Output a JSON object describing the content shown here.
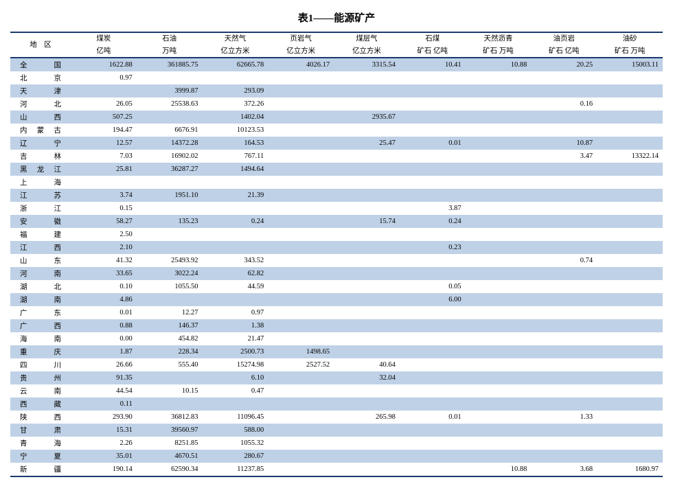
{
  "title": "表1——能源矿产",
  "columns": [
    {
      "l1": "地　区",
      "l2": ""
    },
    {
      "l1": "煤炭",
      "l2": "亿吨"
    },
    {
      "l1": "石油",
      "l2": "万吨"
    },
    {
      "l1": "天然气",
      "l2": "亿立方米"
    },
    {
      "l1": "页岩气",
      "l2": "亿立方米"
    },
    {
      "l1": "煤层气",
      "l2": "亿立方米"
    },
    {
      "l1": "石煤",
      "l2": "矿石 亿吨"
    },
    {
      "l1": "天然沥青",
      "l2": "矿石 万吨"
    },
    {
      "l1": "油页岩",
      "l2": "矿石 亿吨"
    },
    {
      "l1": "油砂",
      "l2": "矿石 万吨"
    }
  ],
  "rows": [
    {
      "r": "全国",
      "c": [
        "1622.88",
        "361885.75",
        "62665.78",
        "4026.17",
        "3315.54",
        "10.41",
        "10.88",
        "20.25",
        "15003.11"
      ]
    },
    {
      "r": "北京",
      "c": [
        "0.97",
        "",
        "",
        "",
        "",
        "",
        "",
        "",
        ""
      ]
    },
    {
      "r": "天津",
      "c": [
        "",
        "3999.87",
        "293.09",
        "",
        "",
        "",
        "",
        "",
        ""
      ]
    },
    {
      "r": "河北",
      "c": [
        "26.05",
        "25538.63",
        "372.26",
        "",
        "",
        "",
        "",
        "0.16",
        ""
      ]
    },
    {
      "r": "山西",
      "c": [
        "507.25",
        "",
        "1402.04",
        "",
        "2935.67",
        "",
        "",
        "",
        ""
      ]
    },
    {
      "r": "内蒙古",
      "c": [
        "194.47",
        "6676.91",
        "10123.53",
        "",
        "",
        "",
        "",
        "",
        ""
      ]
    },
    {
      "r": "辽宁",
      "c": [
        "12.57",
        "14372.28",
        "164.53",
        "",
        "25.47",
        "0.01",
        "",
        "10.87",
        ""
      ]
    },
    {
      "r": "吉林",
      "c": [
        "7.03",
        "16902.02",
        "767.11",
        "",
        "",
        "",
        "",
        "3.47",
        "13322.14"
      ]
    },
    {
      "r": "黑龙江",
      "c": [
        "25.81",
        "36287.27",
        "1494.64",
        "",
        "",
        "",
        "",
        "",
        ""
      ]
    },
    {
      "r": "上海",
      "c": [
        "",
        "",
        "",
        "",
        "",
        "",
        "",
        "",
        ""
      ]
    },
    {
      "r": "江苏",
      "c": [
        "3.74",
        "1951.10",
        "21.39",
        "",
        "",
        "",
        "",
        "",
        ""
      ]
    },
    {
      "r": "浙江",
      "c": [
        "0.15",
        "",
        "",
        "",
        "",
        "3.87",
        "",
        "",
        ""
      ]
    },
    {
      "r": "安徽",
      "c": [
        "58.27",
        "135.23",
        "0.24",
        "",
        "15.74",
        "0.24",
        "",
        "",
        ""
      ]
    },
    {
      "r": "福建",
      "c": [
        "2.50",
        "",
        "",
        "",
        "",
        "",
        "",
        "",
        ""
      ]
    },
    {
      "r": "江西",
      "c": [
        "2.10",
        "",
        "",
        "",
        "",
        "0.23",
        "",
        "",
        ""
      ]
    },
    {
      "r": "山东",
      "c": [
        "41.32",
        "25493.92",
        "343.52",
        "",
        "",
        "",
        "",
        "0.74",
        ""
      ]
    },
    {
      "r": "河南",
      "c": [
        "33.65",
        "3022.24",
        "62.82",
        "",
        "",
        "",
        "",
        "",
        ""
      ]
    },
    {
      "r": "湖北",
      "c": [
        "0.10",
        "1055.50",
        "44.59",
        "",
        "",
        "0.05",
        "",
        "",
        ""
      ]
    },
    {
      "r": "湖南",
      "c": [
        "4.86",
        "",
        "",
        "",
        "",
        "6.00",
        "",
        "",
        ""
      ]
    },
    {
      "r": "广东",
      "c": [
        "0.01",
        "12.27",
        "0.97",
        "",
        "",
        "",
        "",
        "",
        ""
      ]
    },
    {
      "r": "广西",
      "c": [
        "0.88",
        "146.37",
        "1.38",
        "",
        "",
        "",
        "",
        "",
        ""
      ]
    },
    {
      "r": "海南",
      "c": [
        "0.00",
        "454.82",
        "21.47",
        "",
        "",
        "",
        "",
        "",
        ""
      ]
    },
    {
      "r": "重庆",
      "c": [
        "1.87",
        "228.34",
        "2500.73",
        "1498.65",
        "",
        "",
        "",
        "",
        ""
      ]
    },
    {
      "r": "四川",
      "c": [
        "26.66",
        "555.40",
        "15274.98",
        "2527.52",
        "40.64",
        "",
        "",
        "",
        ""
      ]
    },
    {
      "r": "贵州",
      "c": [
        "91.35",
        "",
        "6.10",
        "",
        "32.04",
        "",
        "",
        "",
        ""
      ]
    },
    {
      "r": "云南",
      "c": [
        "44.54",
        "10.15",
        "0.47",
        "",
        "",
        "",
        "",
        "",
        ""
      ]
    },
    {
      "r": "西藏",
      "c": [
        "0.11",
        "",
        "",
        "",
        "",
        "",
        "",
        "",
        ""
      ]
    },
    {
      "r": "陕西",
      "c": [
        "293.90",
        "36812.83",
        "11096.45",
        "",
        "265.98",
        "0.01",
        "",
        "1.33",
        ""
      ]
    },
    {
      "r": "甘肃",
      "c": [
        "15.31",
        "39560.97",
        "588.00",
        "",
        "",
        "",
        "",
        "",
        ""
      ]
    },
    {
      "r": "青海",
      "c": [
        "2.26",
        "8251.85",
        "1055.32",
        "",
        "",
        "",
        "",
        "",
        ""
      ]
    },
    {
      "r": "宁夏",
      "c": [
        "35.01",
        "4670.51",
        "280.67",
        "",
        "",
        "",
        "",
        "",
        ""
      ]
    },
    {
      "r": "新疆",
      "c": [
        "190.14",
        "62590.34",
        "11237.85",
        "",
        "",
        "",
        "10.88",
        "3.68",
        "1680.97"
      ]
    }
  ],
  "style": {
    "header_border_color": "#1a3a6e",
    "row_alt_bg": "#bfd1e6",
    "row_bg": "#ffffff",
    "font_size_body": 10.5,
    "font_size_title": 15
  }
}
